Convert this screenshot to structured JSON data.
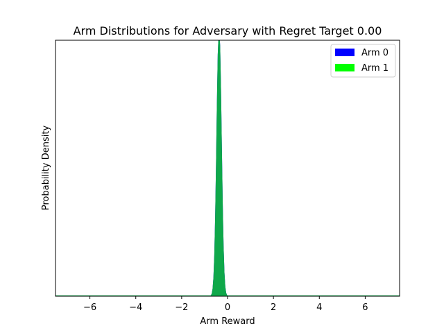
{
  "chart_data": {
    "type": "area",
    "title": "Arm Distributions for Adversary with Regret Target 0.00",
    "xlabel": "Arm Reward",
    "ylabel": "Probability Density",
    "xlim": [
      -7.5,
      7.5
    ],
    "ylim": [
      0,
      1
    ],
    "x_ticks": [
      -6,
      -4,
      -2,
      0,
      2,
      4,
      6
    ],
    "x_tick_labels": [
      "−6",
      "−4",
      "−2",
      "0",
      "2",
      "4",
      "6"
    ],
    "y_ticks_visible": false,
    "grid": false,
    "legend_position": "top-right",
    "series": [
      {
        "name": "Arm 0",
        "legend_color": "#0000ff",
        "fill_color": "#0000ff",
        "distribution": "normal",
        "mean": -0.37,
        "std": 0.1,
        "peak_clipped": true
      },
      {
        "name": "Arm 1",
        "legend_color": "#00ff00",
        "fill_color": "#0fa84a",
        "distribution": "normal",
        "mean": -0.37,
        "std": 0.1,
        "peak_clipped": true
      }
    ]
  }
}
